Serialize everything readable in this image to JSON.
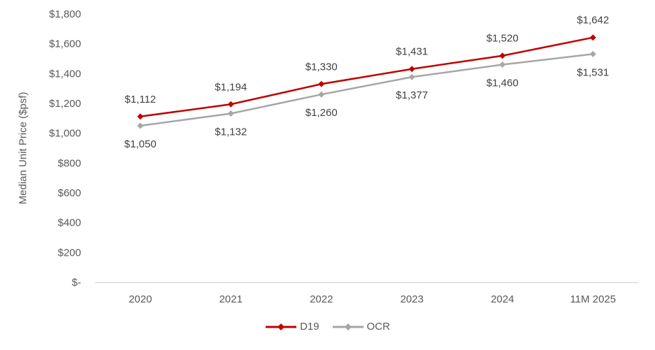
{
  "chart_data": {
    "type": "line",
    "title": "",
    "xlabel": "",
    "ylabel": "Median Unit Price ($psf)",
    "categories": [
      "2020",
      "2021",
      "2022",
      "2023",
      "2024",
      "11M 2025"
    ],
    "series": [
      {
        "name": "D19",
        "color": "#C00000",
        "marker": "diamond",
        "values": [
          1112,
          1194,
          1330,
          1431,
          1520,
          1642
        ],
        "labels": [
          "$1,112",
          "$1,194",
          "$1,330",
          "$1,431",
          "$1,520",
          "$1,642"
        ],
        "label_position": "above"
      },
      {
        "name": "OCR",
        "color": "#A6A6A6",
        "marker": "diamond",
        "values": [
          1050,
          1132,
          1260,
          1377,
          1460,
          1531
        ],
        "labels": [
          "$1,050",
          "$1,132",
          "$1,260",
          "$1,377",
          "$1,460",
          "$1,531"
        ],
        "label_position": "below"
      }
    ],
    "ylim": [
      0,
      1800
    ],
    "yticks": [
      {
        "value": 0,
        "label": "$-"
      },
      {
        "value": 200,
        "label": "$200"
      },
      {
        "value": 400,
        "label": "$400"
      },
      {
        "value": 600,
        "label": "$600"
      },
      {
        "value": 800,
        "label": "$800"
      },
      {
        "value": 1000,
        "label": "$1,000"
      },
      {
        "value": 1200,
        "label": "$1,200"
      },
      {
        "value": 1400,
        "label": "$1,400"
      },
      {
        "value": 1600,
        "label": "$1,600"
      },
      {
        "value": 1800,
        "label": "$1,800"
      }
    ],
    "grid": false,
    "legend_position": "bottom"
  },
  "style": {
    "axis_line_color": "#D9D9D9",
    "tick_label_color": "#595959",
    "data_label_color": "#404040"
  }
}
